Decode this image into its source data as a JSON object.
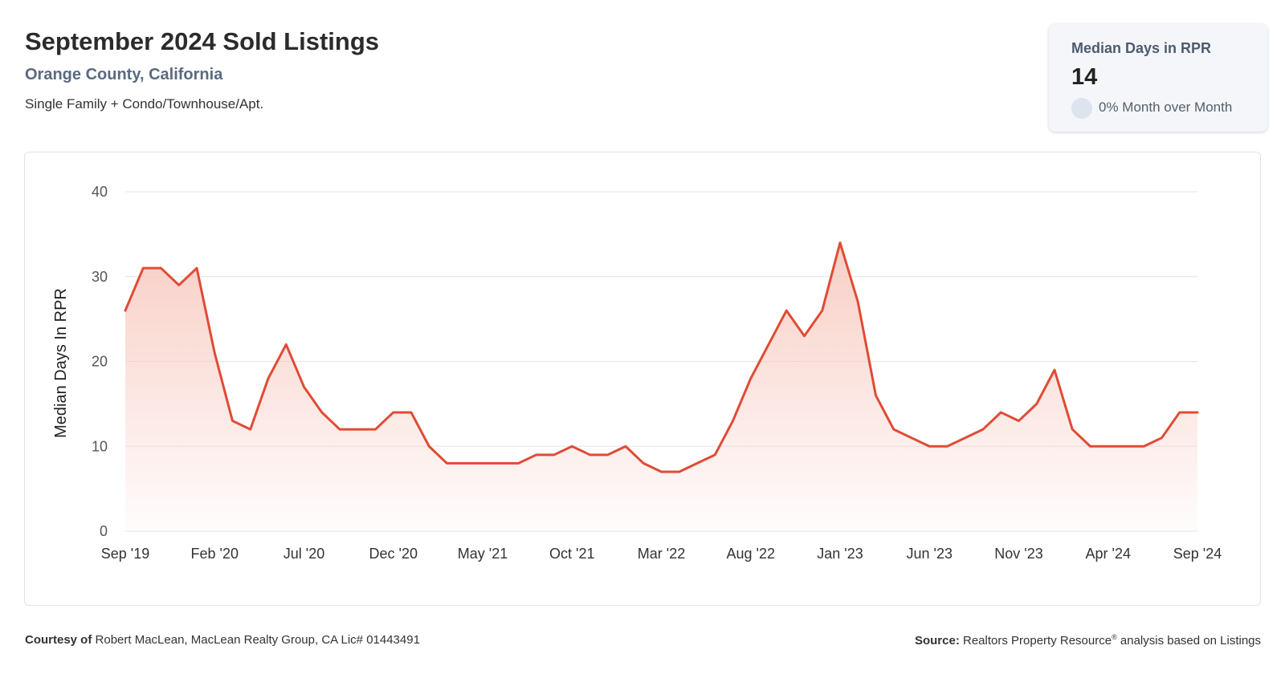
{
  "header": {
    "title": "September 2024 Sold Listings",
    "subtitle": "Orange County, California",
    "property_types": "Single Family + Condo/Townhouse/Apt."
  },
  "kpi": {
    "label": "Median Days in RPR",
    "value": "14",
    "change": "0% Month over Month"
  },
  "footer": {
    "courtesy_label": "Courtesy of",
    "courtesy_text": "Robert MacLean, MacLean Realty Group, CA Lic# 01443491",
    "source_label": "Source:",
    "source_text": "Realtors Property Resource",
    "source_sup": "®",
    "source_suffix": "analysis based on Listings"
  },
  "colors": {
    "line": "#e04b35",
    "area_top": "#f7c9bf",
    "grid": "#e3e6ea",
    "axis_text": "#444444"
  },
  "chart_data": {
    "type": "area",
    "xlabel": "",
    "ylabel": "Median Days In RPR",
    "ylim": [
      0,
      40
    ],
    "yticks": [
      0,
      10,
      20,
      30,
      40
    ],
    "grid": true,
    "x_tick_labels": [
      "Sep '19",
      "Feb '20",
      "Jul '20",
      "Dec '20",
      "May '21",
      "Oct '21",
      "Mar '22",
      "Aug '22",
      "Jan '23",
      "Jun '23",
      "Nov '23",
      "Apr '24",
      "Sep '24"
    ],
    "x": [
      "2019-09",
      "2019-10",
      "2019-11",
      "2019-12",
      "2020-01",
      "2020-02",
      "2020-03",
      "2020-04",
      "2020-05",
      "2020-06",
      "2020-07",
      "2020-08",
      "2020-09",
      "2020-10",
      "2020-11",
      "2020-12",
      "2021-01",
      "2021-02",
      "2021-03",
      "2021-04",
      "2021-05",
      "2021-06",
      "2021-07",
      "2021-08",
      "2021-09",
      "2021-10",
      "2021-11",
      "2021-12",
      "2022-01",
      "2022-02",
      "2022-03",
      "2022-04",
      "2022-05",
      "2022-06",
      "2022-07",
      "2022-08",
      "2022-09",
      "2022-10",
      "2022-11",
      "2022-12",
      "2023-01",
      "2023-02",
      "2023-03",
      "2023-04",
      "2023-05",
      "2023-06",
      "2023-07",
      "2023-08",
      "2023-09",
      "2023-10",
      "2023-11",
      "2023-12",
      "2024-01",
      "2024-02",
      "2024-03",
      "2024-04",
      "2024-05",
      "2024-06",
      "2024-07",
      "2024-08",
      "2024-09"
    ],
    "series": [
      {
        "values": [
          26,
          31,
          31,
          29,
          31,
          21,
          13,
          12,
          18,
          22,
          17,
          14,
          12,
          12,
          12,
          14,
          14,
          10,
          8,
          8,
          8,
          8,
          8,
          9,
          9,
          10,
          9,
          9,
          10,
          8,
          7,
          7,
          8,
          9,
          13,
          18,
          22,
          26,
          23,
          26,
          34,
          27,
          16,
          12,
          11,
          10,
          10,
          11,
          12,
          14,
          13,
          15,
          19,
          12,
          10,
          10,
          10,
          10,
          11,
          14,
          14
        ]
      }
    ]
  }
}
